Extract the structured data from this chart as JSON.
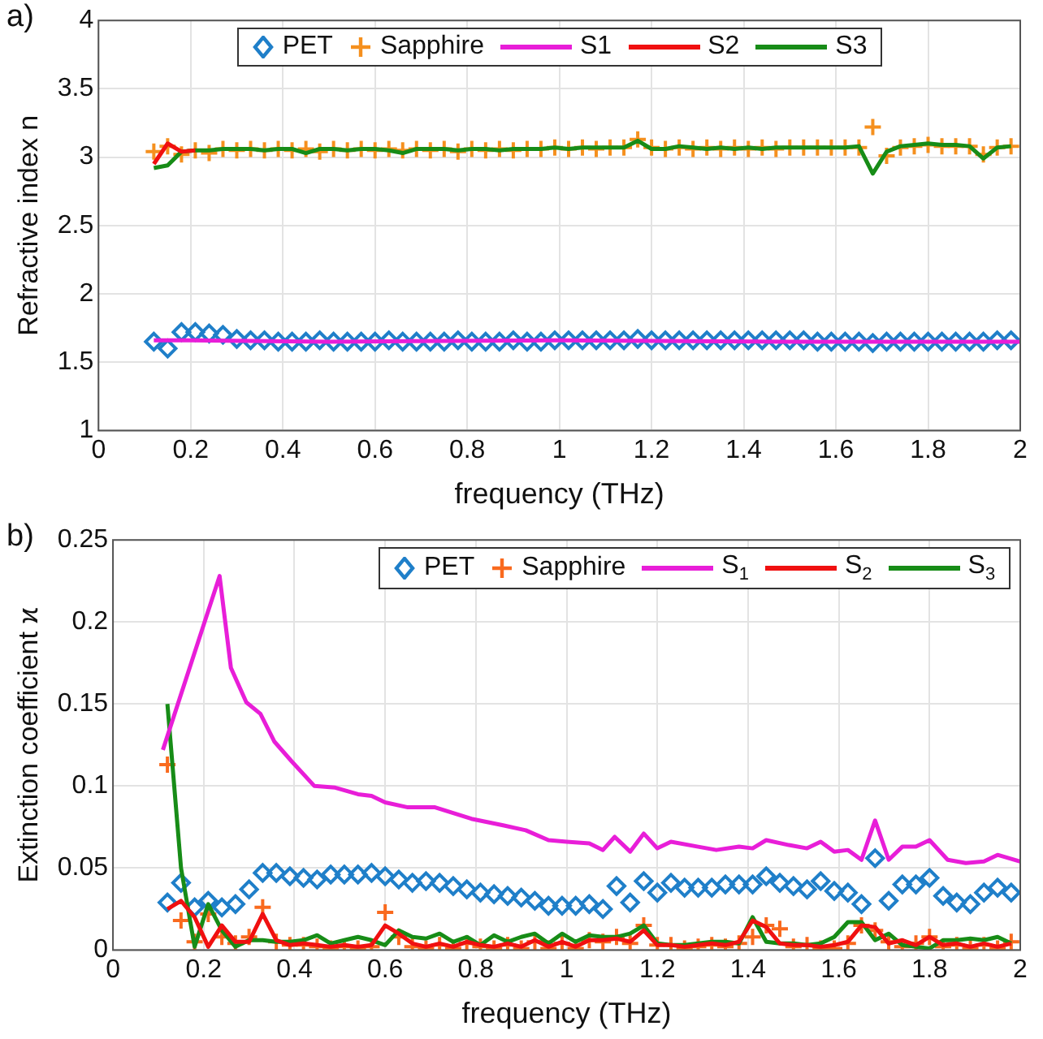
{
  "chart_data": [
    {
      "type": "scatter",
      "annotations": [
        "a)"
      ],
      "xlabel": "frequency (THz)",
      "ylabel": "Refractive index n",
      "x": [
        0.12,
        0.15,
        0.18,
        0.21,
        0.24,
        0.27,
        0.3,
        0.33,
        0.36,
        0.39,
        0.42,
        0.45,
        0.48,
        0.51,
        0.54,
        0.57,
        0.6,
        0.63,
        0.66,
        0.69,
        0.72,
        0.75,
        0.78,
        0.81,
        0.84,
        0.87,
        0.9,
        0.93,
        0.96,
        0.99,
        1.02,
        1.05,
        1.08,
        1.11,
        1.14,
        1.17,
        1.2,
        1.23,
        1.26,
        1.29,
        1.32,
        1.35,
        1.38,
        1.41,
        1.44,
        1.47,
        1.5,
        1.53,
        1.56,
        1.59,
        1.62,
        1.65,
        1.68,
        1.71,
        1.74,
        1.77,
        1.8,
        1.83,
        1.86,
        1.89,
        1.92,
        1.95,
        1.98
      ],
      "series": [
        {
          "name": "PET",
          "type": "scatter",
          "marker": "diamond",
          "color": "#1f7fc9",
          "values": [
            1.65,
            1.6,
            1.72,
            1.72,
            1.71,
            1.7,
            1.67,
            1.66,
            1.66,
            1.65,
            1.65,
            1.65,
            1.66,
            1.65,
            1.65,
            1.65,
            1.65,
            1.66,
            1.65,
            1.65,
            1.65,
            1.65,
            1.66,
            1.65,
            1.65,
            1.65,
            1.66,
            1.65,
            1.65,
            1.66,
            1.66,
            1.66,
            1.66,
            1.66,
            1.66,
            1.67,
            1.66,
            1.66,
            1.66,
            1.66,
            1.66,
            1.66,
            1.66,
            1.66,
            1.66,
            1.66,
            1.66,
            1.66,
            1.65,
            1.65,
            1.65,
            1.65,
            1.64,
            1.65,
            1.65,
            1.65,
            1.65,
            1.65,
            1.65,
            1.65,
            1.65,
            1.66,
            1.66
          ]
        },
        {
          "name": "Sapphire",
          "type": "scatter",
          "marker": "cross",
          "color": "#f5901e",
          "values": [
            3.04,
            3.08,
            3.02,
            3.05,
            3.03,
            3.06,
            3.05,
            3.06,
            3.05,
            3.06,
            3.05,
            3.06,
            3.04,
            3.06,
            3.05,
            3.06,
            3.05,
            3.06,
            3.05,
            3.06,
            3.05,
            3.06,
            3.04,
            3.06,
            3.05,
            3.06,
            3.05,
            3.06,
            3.06,
            3.07,
            3.06,
            3.07,
            3.06,
            3.07,
            3.07,
            3.13,
            3.07,
            3.06,
            3.07,
            3.06,
            3.07,
            3.06,
            3.07,
            3.06,
            3.07,
            3.06,
            3.07,
            3.07,
            3.07,
            3.07,
            3.07,
            3.07,
            3.22,
            3.01,
            3.07,
            3.08,
            3.09,
            3.08,
            3.08,
            3.08,
            3.02,
            3.07,
            3.08
          ]
        },
        {
          "name": "S1",
          "type": "line",
          "color": "#e81ed8",
          "x": [
            0.12,
            0.2,
            0.5,
            1.0,
            1.5,
            2.0
          ],
          "values": [
            1.66,
            1.66,
            1.65,
            1.66,
            1.65,
            1.65
          ]
        },
        {
          "name": "S2",
          "type": "line",
          "color": "#f01010",
          "values": [
            2.95,
            3.1,
            3.04,
            3.05,
            null,
            null,
            null,
            null,
            null,
            null,
            null,
            null,
            null,
            null,
            null,
            null,
            null,
            null,
            null,
            null,
            null,
            null,
            null,
            null,
            null,
            null,
            null,
            null,
            null,
            null,
            null,
            null,
            null,
            null,
            null,
            null,
            null,
            null,
            null,
            null,
            null,
            null,
            null,
            null,
            null,
            null,
            null,
            null,
            null,
            null,
            null,
            null,
            null,
            null,
            null,
            null,
            null,
            null,
            null,
            null,
            null,
            null,
            null
          ]
        },
        {
          "name": "S3",
          "type": "line",
          "color": "#178c17",
          "values": [
            2.92,
            2.94,
            3.04,
            3.05,
            3.05,
            3.06,
            3.06,
            3.06,
            3.05,
            3.06,
            3.06,
            3.03,
            3.06,
            3.06,
            3.05,
            3.06,
            3.06,
            3.05,
            3.03,
            3.06,
            3.06,
            3.06,
            3.05,
            3.06,
            3.06,
            3.05,
            3.06,
            3.06,
            3.06,
            3.07,
            3.06,
            3.07,
            3.07,
            3.07,
            3.07,
            3.12,
            3.06,
            3.06,
            3.08,
            3.07,
            3.06,
            3.07,
            3.06,
            3.07,
            3.06,
            3.07,
            3.07,
            3.07,
            3.07,
            3.07,
            3.07,
            3.08,
            2.88,
            3.04,
            3.08,
            3.09,
            3.1,
            3.09,
            3.09,
            3.08,
            2.99,
            3.07,
            3.08
          ]
        }
      ],
      "xlim": [
        0,
        2
      ],
      "xticks": [
        0,
        0.2,
        0.4,
        0.6,
        0.8,
        1,
        1.2,
        1.4,
        1.6,
        1.8,
        2
      ],
      "ylim": [
        1,
        4
      ],
      "yticks": [
        1,
        1.5,
        2,
        2.5,
        3,
        3.5,
        4
      ],
      "grid": true,
      "legend": "top"
    },
    {
      "type": "scatter",
      "annotations": [
        "b)"
      ],
      "xlabel": "frequency (THz)",
      "ylabel": "Extinction coefficient ϰ",
      "x": [
        0.12,
        0.15,
        0.18,
        0.21,
        0.24,
        0.27,
        0.3,
        0.33,
        0.36,
        0.39,
        0.42,
        0.45,
        0.48,
        0.51,
        0.54,
        0.57,
        0.6,
        0.63,
        0.66,
        0.69,
        0.72,
        0.75,
        0.78,
        0.81,
        0.84,
        0.87,
        0.9,
        0.93,
        0.96,
        0.99,
        1.02,
        1.05,
        1.08,
        1.11,
        1.14,
        1.17,
        1.2,
        1.23,
        1.26,
        1.29,
        1.32,
        1.35,
        1.38,
        1.41,
        1.44,
        1.47,
        1.5,
        1.53,
        1.56,
        1.59,
        1.62,
        1.65,
        1.68,
        1.71,
        1.74,
        1.77,
        1.8,
        1.83,
        1.86,
        1.89,
        1.92,
        1.95,
        1.98
      ],
      "series": [
        {
          "name": "PET",
          "type": "scatter",
          "marker": "diamond",
          "color": "#1f7fc9",
          "values": [
            0.029,
            0.041,
            0.026,
            0.03,
            0.026,
            0.028,
            0.037,
            0.047,
            0.047,
            0.045,
            0.044,
            0.043,
            0.046,
            0.046,
            0.046,
            0.047,
            0.045,
            0.043,
            0.041,
            0.042,
            0.041,
            0.039,
            0.037,
            0.035,
            0.034,
            0.033,
            0.032,
            0.03,
            0.027,
            0.027,
            0.027,
            0.028,
            0.025,
            0.039,
            0.029,
            0.042,
            0.035,
            0.041,
            0.038,
            0.038,
            0.038,
            0.04,
            0.04,
            0.04,
            0.045,
            0.041,
            0.039,
            0.037,
            0.042,
            0.036,
            0.035,
            0.028,
            0.056,
            0.03,
            0.04,
            0.04,
            0.044,
            0.033,
            0.029,
            0.028,
            0.035,
            0.038,
            0.035
          ]
        },
        {
          "name": "Sapphire",
          "type": "scatter",
          "marker": "cross",
          "color": "#f96a1e",
          "values": [
            0.113,
            0.018,
            0.005,
            0.022,
            0.008,
            0.004,
            0.008,
            0.026,
            0.005,
            0.003,
            0.003,
            0.002,
            0.001,
            0.002,
            0.001,
            0.002,
            0.023,
            0.008,
            0.002,
            0.001,
            0.003,
            0.001,
            0.004,
            0.002,
            0.001,
            0.003,
            0.001,
            0.005,
            0.001,
            0.004,
            0.001,
            0.006,
            0.005,
            0.008,
            0.004,
            0.015,
            0.003,
            0.003,
            0.001,
            0.002,
            0.003,
            0.002,
            0.004,
            0.008,
            0.015,
            0.013,
            0.002,
            0.003,
            0.001,
            0.001,
            0.004,
            0.015,
            0.012,
            0.005,
            0.002,
            0.004,
            0.008,
            0.002,
            0.003,
            0.001,
            0.003,
            0.001,
            0.005
          ]
        },
        {
          "name": "S$_{1}$",
          "type": "line",
          "color": "#e81ed8",
          "x": [
            0.11,
            0.235,
            0.26,
            0.294,
            0.325,
            0.356,
            0.394,
            0.444,
            0.49,
            0.54,
            0.57,
            0.6,
            0.65,
            0.71,
            0.79,
            0.86,
            0.91,
            0.96,
            1.0,
            1.05,
            1.08,
            1.106,
            1.14,
            1.17,
            1.2,
            1.23,
            1.29,
            1.33,
            1.38,
            1.41,
            1.44,
            1.49,
            1.53,
            1.56,
            1.59,
            1.62,
            1.65,
            1.68,
            1.71,
            1.74,
            1.77,
            1.8,
            1.84,
            1.88,
            1.92,
            1.95,
            2.0
          ],
          "values": [
            0.122,
            0.228,
            0.172,
            0.151,
            0.144,
            0.127,
            0.115,
            0.1,
            0.099,
            0.095,
            0.094,
            0.09,
            0.087,
            0.087,
            0.08,
            0.076,
            0.073,
            0.067,
            0.066,
            0.065,
            0.061,
            0.069,
            0.06,
            0.071,
            0.062,
            0.066,
            0.063,
            0.061,
            0.063,
            0.062,
            0.067,
            0.064,
            0.062,
            0.066,
            0.06,
            0.061,
            0.055,
            0.079,
            0.055,
            0.063,
            0.063,
            0.067,
            0.055,
            0.053,
            0.054,
            0.058,
            0.054
          ]
        },
        {
          "name": "S$_{2}$",
          "type": "line",
          "color": "#f01010",
          "values": [
            0.025,
            0.03,
            0.02,
            0.002,
            0.015,
            0.005,
            0.005,
            0.022,
            0.006,
            0.003,
            0.004,
            0.003,
            0.002,
            0.003,
            0.002,
            0.003,
            0.015,
            0.01,
            0.004,
            0.002,
            0.004,
            0.002,
            0.005,
            0.003,
            0.002,
            0.004,
            0.002,
            0.006,
            0.002,
            0.005,
            0.002,
            0.006,
            0.006,
            0.007,
            0.005,
            0.012,
            0.003,
            0.003,
            0.002,
            0.003,
            0.004,
            0.003,
            0.005,
            0.018,
            0.014,
            0.004,
            0.003,
            0.003,
            0.002,
            0.003,
            0.005,
            0.015,
            0.014,
            0.004,
            0.006,
            0.003,
            0.008,
            0.003,
            0.004,
            0.002,
            0.004,
            0.002,
            0.004
          ]
        },
        {
          "name": "S$_{3}$",
          "type": "line",
          "color": "#178c17",
          "values": [
            0.15,
            0.05,
            0.002,
            0.028,
            0.012,
            0.002,
            0.006,
            0.006,
            0.005,
            0.005,
            0.006,
            0.009,
            0.004,
            0.006,
            0.008,
            0.006,
            0.003,
            0.012,
            0.008,
            0.007,
            0.01,
            0.005,
            0.008,
            0.003,
            0.009,
            0.005,
            0.008,
            0.01,
            0.004,
            0.01,
            0.005,
            0.009,
            0.008,
            0.008,
            0.01,
            0.015,
            0.004,
            0.003,
            0.003,
            0.004,
            0.005,
            0.005,
            0.004,
            0.02,
            0.005,
            0.004,
            0.004,
            0.003,
            0.004,
            0.008,
            0.017,
            0.017,
            0.006,
            0.01,
            0.003,
            0.002,
            0.001,
            0.006,
            0.006,
            0.007,
            0.006,
            0.008,
            0.004
          ]
        }
      ],
      "xlim": [
        0,
        2
      ],
      "xticks": [
        0,
        0.2,
        0.4,
        0.6,
        0.8,
        1,
        1.2,
        1.4,
        1.6,
        1.8,
        2
      ],
      "ylim": [
        0,
        0.25
      ],
      "yticks": [
        0,
        0.05,
        0.1,
        0.15,
        0.2,
        0.25
      ],
      "grid": true,
      "legend": "top right"
    }
  ]
}
